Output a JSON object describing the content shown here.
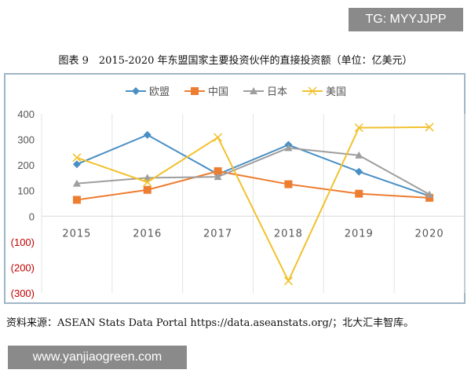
{
  "watermark_top": "TG: MYYJJPP",
  "watermark_bottom": "www.yanjiaogreen.com",
  "figure_title": "图表 9　2015-2020 年东盟国家主要投资伙伴的直接投资额（单位：亿美元）",
  "source": "资料来源：ASEAN Stats Data Portal https://data.aseanstats.org/；北大汇丰智库。",
  "chart_data": {
    "type": "line",
    "title": "",
    "categories": [
      "2015",
      "2016",
      "2017",
      "2018",
      "2019",
      "2020"
    ],
    "ylim": [
      -300,
      400
    ],
    "yticks": [
      400,
      300,
      200,
      100,
      0,
      -100,
      -200,
      -300
    ],
    "ytick_labels": [
      "400",
      "300",
      "200",
      "100",
      "0",
      "(100)",
      "(200)",
      "(300)"
    ],
    "negative_label_color": "#c00000",
    "grid": "vertical",
    "legend": "top",
    "series": [
      {
        "name": "欧盟",
        "color": "#4a8fc4",
        "marker": "diamond",
        "values": [
          203,
          318,
          164,
          279,
          174,
          79
        ]
      },
      {
        "name": "中国",
        "color": "#ed7d31",
        "marker": "square",
        "values": [
          64,
          103,
          176,
          125,
          88,
          72
        ]
      },
      {
        "name": "日本",
        "color": "#9e9e9e",
        "marker": "triangle",
        "values": [
          128,
          150,
          154,
          267,
          238,
          85
        ]
      },
      {
        "name": "美国",
        "color": "#f2c12e",
        "marker": "x",
        "values": [
          229,
          133,
          308,
          -253,
          346,
          348
        ]
      }
    ]
  }
}
